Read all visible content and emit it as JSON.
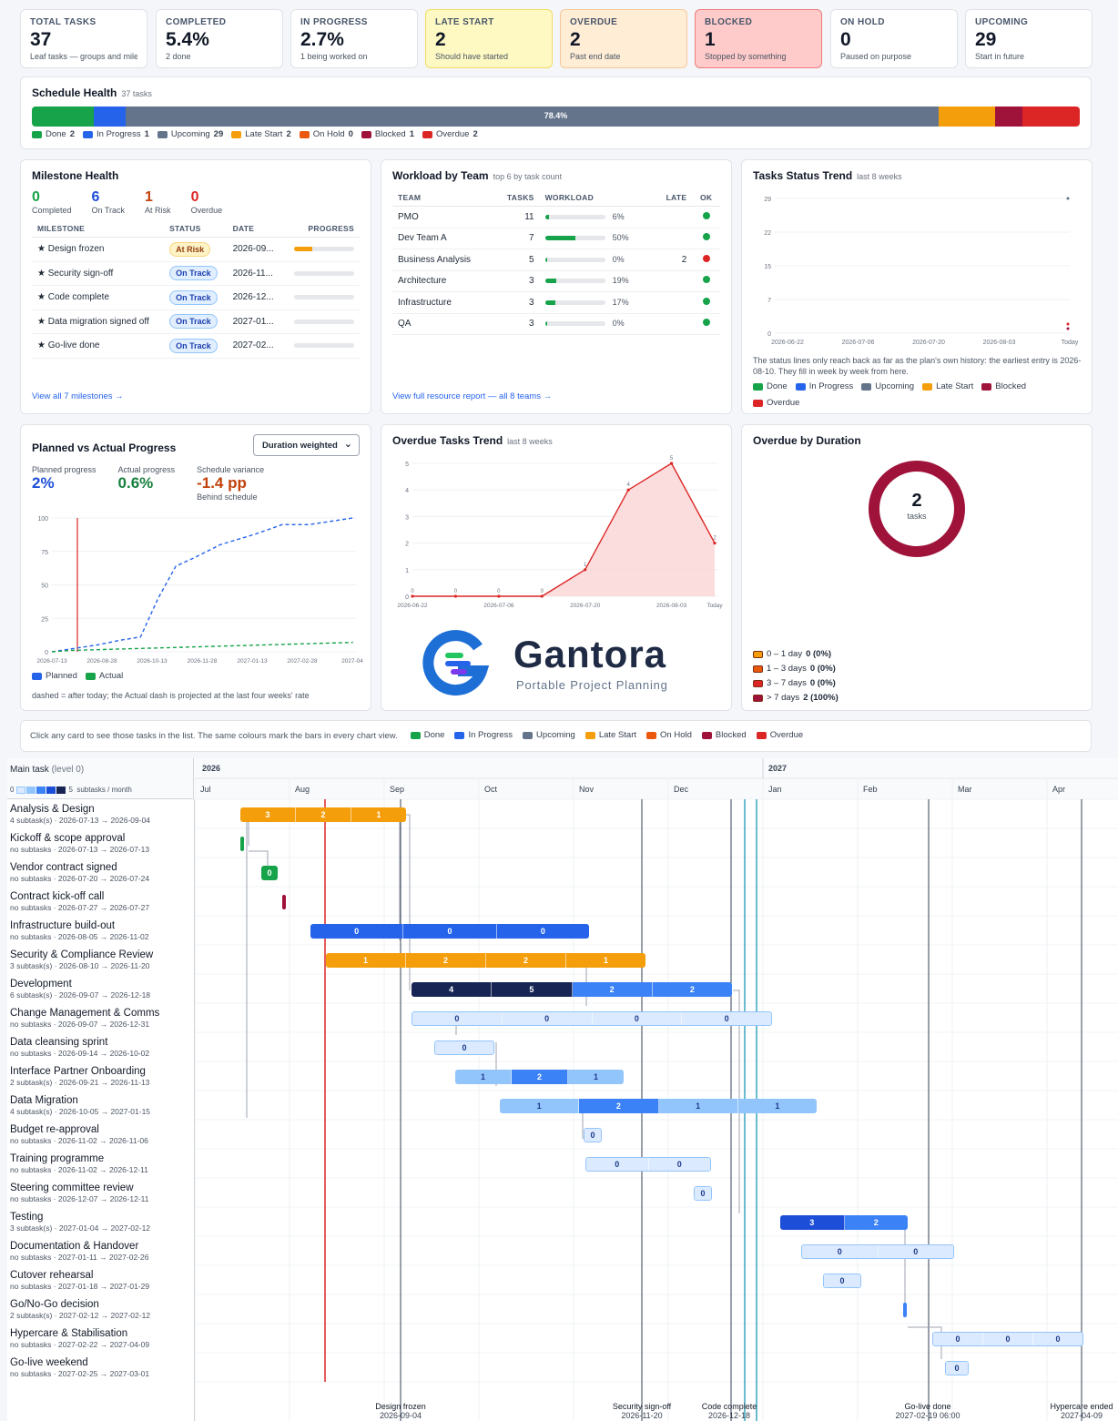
{
  "kpis": [
    {
      "title": "TOTAL TASKS",
      "value": "37",
      "sub": "Leaf tasks — groups and milestones"
    },
    {
      "title": "COMPLETED",
      "value": "5.4%",
      "sub": "2 done"
    },
    {
      "title": "IN PROGRESS",
      "value": "2.7%",
      "sub": "1 being worked on"
    },
    {
      "title": "LATE START",
      "value": "2",
      "sub": "Should have started"
    },
    {
      "title": "OVERDUE",
      "value": "2",
      "sub": "Past end date"
    },
    {
      "title": "BLOCKED",
      "value": "1",
      "sub": "Stopped by something"
    },
    {
      "title": "ON HOLD",
      "value": "0",
      "sub": "Paused on purpose"
    },
    {
      "title": "UPCOMING",
      "value": "29",
      "sub": "Start in future"
    }
  ],
  "schedule_health": {
    "title": "Schedule Health",
    "sub": "37 tasks",
    "bar_label": "78.4%",
    "segments": [
      {
        "name": "Done",
        "count": "2",
        "color": "#16a34a"
      },
      {
        "name": "In Progress",
        "count": "1",
        "color": "#2563eb"
      },
      {
        "name": "Upcoming",
        "count": "29",
        "color": "#64748b"
      },
      {
        "name": "Late Start",
        "count": "2",
        "color": "#f59e0b"
      },
      {
        "name": "On Hold",
        "count": "0",
        "color": "#ea580c"
      },
      {
        "name": "Blocked",
        "count": "1",
        "color": "#9f1239"
      },
      {
        "name": "Overdue",
        "count": "2",
        "color": "#dc2626"
      }
    ]
  },
  "milestone_health": {
    "title": "Milestone Health",
    "stats": [
      {
        "value": "0",
        "label": "Completed",
        "color": "#16a34a"
      },
      {
        "value": "6",
        "label": "On Track",
        "color": "#1d4ed8"
      },
      {
        "value": "1",
        "label": "At Risk",
        "color": "#c2410c"
      },
      {
        "value": "0",
        "label": "Overdue",
        "color": "#dc2626"
      }
    ],
    "headers": [
      "MILESTONE",
      "STATUS",
      "DATE",
      "PROGRESS"
    ],
    "rows": [
      {
        "name": "★ Design frozen",
        "status": "At Risk",
        "date": "2026-09...",
        "progress": 0.3
      },
      {
        "name": "★ Security sign-off",
        "status": "On Track",
        "date": "2026-11...",
        "progress": 0
      },
      {
        "name": "★ Code complete",
        "status": "On Track",
        "date": "2026-12...",
        "progress": 0
      },
      {
        "name": "★ Data migration signed off",
        "status": "On Track",
        "date": "2027-01...",
        "progress": 0
      },
      {
        "name": "★ Go-live done",
        "status": "On Track",
        "date": "2027-02...",
        "progress": 0
      }
    ],
    "link": "View all 7 milestones →"
  },
  "workload": {
    "title": "Workload by Team",
    "sub": "top 6 by task count",
    "headers": [
      "TEAM",
      "TASKS",
      "WORKLOAD",
      "LATE",
      "OK"
    ],
    "rows": [
      {
        "team": "PMO",
        "tasks": "11",
        "pct": "6%",
        "frac": 0.06,
        "late": "",
        "ok": "#16a34a"
      },
      {
        "team": "Dev Team A",
        "tasks": "7",
        "pct": "50%",
        "frac": 0.5,
        "late": "",
        "ok": "#16a34a"
      },
      {
        "team": "Business Analysis",
        "tasks": "5",
        "pct": "0%",
        "frac": 0,
        "late": "2",
        "ok": "#dc2626"
      },
      {
        "team": "Architecture",
        "tasks": "3",
        "pct": "19%",
        "frac": 0.19,
        "late": "",
        "ok": "#16a34a"
      },
      {
        "team": "Infrastructure",
        "tasks": "3",
        "pct": "17%",
        "frac": 0.17,
        "late": "",
        "ok": "#16a34a"
      },
      {
        "team": "QA",
        "tasks": "3",
        "pct": "0%",
        "frac": 0,
        "late": "",
        "ok": "#16a34a"
      }
    ],
    "link": "View full resource report — all 8 teams →"
  },
  "status_trend": {
    "title": "Tasks Status Trend",
    "sub": "last 8 weeks",
    "yticks": [
      "29",
      "22",
      "15",
      "7",
      "0"
    ],
    "xticks": [
      "2026-06-22",
      "2026-07-06",
      "2026-07-20",
      "2026-08-03",
      "Today"
    ],
    "note": "The status lines only reach back as far as the plan's own history: the earliest entry is 2026-08-10. They fill in week by week from here.",
    "legend": [
      {
        "name": "Done",
        "color": "#16a34a"
      },
      {
        "name": "In Progress",
        "color": "#2563eb"
      },
      {
        "name": "Upcoming",
        "color": "#64748b"
      },
      {
        "name": "Late Start",
        "color": "#f59e0b"
      },
      {
        "name": "Blocked",
        "color": "#9f1239"
      },
      {
        "name": "Overdue",
        "color": "#dc2626"
      }
    ]
  },
  "planned_actual": {
    "title": "Planned vs Actual Progress",
    "select": "Duration weighted",
    "stats": [
      {
        "label": "Planned progress",
        "value": "2%",
        "color": "#1d4ed8",
        "sub": ""
      },
      {
        "label": "Actual progress",
        "value": "0.6%",
        "color": "#15803d",
        "sub": ""
      },
      {
        "label": "Schedule variance",
        "value": "-1.4 pp",
        "color": "#c2410c",
        "sub": "Behind schedule"
      }
    ],
    "legend": [
      {
        "name": "Planned",
        "color": "#2563eb"
      },
      {
        "name": "Actual",
        "color": "#16a34a"
      }
    ],
    "note": "dashed = after today; the Actual dash is projected at the last four weeks' rate"
  },
  "chart_data": [
    {
      "type": "line",
      "title": "Planned vs Actual Progress",
      "x": [
        "2026-07-13",
        "2026-08-28",
        "2026-10-13",
        "2026-11-28",
        "2027-01-13",
        "2027-02-28",
        "2027-04"
      ],
      "ylim": [
        0,
        100
      ],
      "yticks": [
        0,
        25,
        50,
        75,
        100
      ],
      "series": [
        {
          "name": "Planned",
          "values": [
            [
              0,
              0
            ],
            [
              0.04,
              2
            ],
            [
              0.1,
              5
            ],
            [
              0.16,
              9
            ],
            [
              0.2,
              11
            ],
            [
              0.24,
              40
            ],
            [
              0.28,
              64
            ],
            [
              0.32,
              70
            ],
            [
              0.38,
              80
            ],
            [
              0.46,
              88
            ],
            [
              0.52,
              95
            ],
            [
              0.58,
              95
            ],
            [
              0.64,
              98
            ],
            [
              0.68,
              100
            ]
          ]
        },
        {
          "name": "Actual",
          "values": [
            [
              0,
              0
            ],
            [
              0.04,
              1
            ],
            [
              0.68,
              7
            ]
          ]
        }
      ]
    },
    {
      "type": "area",
      "title": "Overdue Tasks Trend",
      "categories": [
        "2026-06-22",
        "",
        "2026-07-06",
        "",
        "2026-07-20",
        "",
        "2026-08-03",
        "Today"
      ],
      "values": [
        0,
        0,
        0,
        0,
        1,
        4,
        5,
        2
      ],
      "ylim": [
        0,
        5
      ],
      "yticks": [
        0,
        1,
        2,
        3,
        4,
        5
      ]
    },
    {
      "type": "pie",
      "title": "Overdue by Duration",
      "center_value": "2",
      "center_label": "tasks",
      "slices": [
        {
          "name": "0 – 1 day",
          "value": 0,
          "label": "0 (0%)",
          "color": "#f59e0b"
        },
        {
          "name": "1 – 3 days",
          "value": 0,
          "label": "0 (0%)",
          "color": "#ea580c"
        },
        {
          "name": "3 – 7 days",
          "value": 0,
          "label": "0 (0%)",
          "color": "#dc2626"
        },
        {
          "name": "> 7 days",
          "value": 2,
          "label": "2 (100%)",
          "color": "#9f1239"
        }
      ]
    }
  ],
  "overdue_trend": {
    "title": "Overdue Tasks Trend",
    "sub": "last 8 weeks"
  },
  "overdue_duration": {
    "title": "Overdue by Duration"
  },
  "brand": {
    "name": "Gantora",
    "tagline": "Portable Project Planning"
  },
  "hint": {
    "text": "Click any card to see those tasks in the list. The same colours mark the bars in every chart view.",
    "legend": [
      {
        "name": "Done",
        "color": "#16a34a"
      },
      {
        "name": "In Progress",
        "color": "#2563eb"
      },
      {
        "name": "Upcoming",
        "color": "#64748b"
      },
      {
        "name": "Late Start",
        "color": "#f59e0b"
      },
      {
        "name": "On Hold",
        "color": "#ea580c"
      },
      {
        "name": "Blocked",
        "color": "#9f1239"
      },
      {
        "name": "Overdue",
        "color": "#dc2626"
      }
    ]
  },
  "gantt": {
    "header": "Main task",
    "header_sub": "(level 0)",
    "scale_min": "0",
    "scale_max": "5",
    "scale_label": "subtasks / month",
    "years": [
      "2026",
      "2027"
    ],
    "months": [
      "Jul",
      "Aug",
      "Sep",
      "Oct",
      "Nov",
      "Dec",
      "Jan",
      "Feb",
      "Mar",
      "Apr"
    ],
    "tasks": [
      {
        "name": "Analysis & Design",
        "dates": "4 subtask(s) · 2026-07-13 → 2026-09-04"
      },
      {
        "name": "Kickoff & scope approval",
        "dates": "no subtasks · 2026-07-13 → 2026-07-13"
      },
      {
        "name": "Vendor contract signed",
        "dates": "no subtasks · 2026-07-20 → 2026-07-24"
      },
      {
        "name": "Contract kick-off call",
        "dates": "no subtasks · 2026-07-27 → 2026-07-27"
      },
      {
        "name": "Infrastructure build-out",
        "dates": "no subtasks · 2026-08-05 → 2026-11-02"
      },
      {
        "name": "Security & Compliance Review",
        "dates": "3 subtask(s) · 2026-08-10 → 2026-11-20"
      },
      {
        "name": "Development",
        "dates": "6 subtask(s) · 2026-09-07 → 2026-12-18"
      },
      {
        "name": "Change Management & Comms",
        "dates": "no subtasks · 2026-09-07 → 2026-12-31"
      },
      {
        "name": "Data cleansing sprint",
        "dates": "no subtasks · 2026-09-14 → 2026-10-02"
      },
      {
        "name": "Interface Partner Onboarding",
        "dates": "2 subtask(s) · 2026-09-21 → 2026-11-13"
      },
      {
        "name": "Data Migration",
        "dates": "4 subtask(s) · 2026-10-05 → 2027-01-15"
      },
      {
        "name": "Budget re-approval",
        "dates": "no subtasks · 2026-11-02 → 2026-11-06"
      },
      {
        "name": "Training programme",
        "dates": "no subtasks · 2026-11-02 → 2026-12-11"
      },
      {
        "name": "Steering committee review",
        "dates": "no subtasks · 2026-12-07 → 2026-12-11"
      },
      {
        "name": "Testing",
        "dates": "3 subtask(s) · 2027-01-04 → 2027-02-12"
      },
      {
        "name": "Documentation & Handover",
        "dates": "no subtasks · 2027-01-11 → 2027-02-26"
      },
      {
        "name": "Cutover rehearsal",
        "dates": "no subtasks · 2027-01-18 → 2027-01-29"
      },
      {
        "name": "Go/No-Go decision",
        "dates": "2 subtask(s) · 2027-02-12 → 2027-02-12"
      },
      {
        "name": "Hypercare & Stabilisation",
        "dates": "no subtasks · 2027-02-22 → 2027-04-09"
      },
      {
        "name": "Go-live weekend",
        "dates": "no subtasks · 2027-02-25 → 2027-03-01"
      }
    ],
    "bars": [
      {
        "segs": [
          {
            "t": "3",
            "c": "#f59e0b"
          },
          {
            "t": "2",
            "c": "#f59e0b"
          },
          {
            "t": "1",
            "c": "#f59e0b"
          }
        ]
      },
      {
        "segs": [
          {
            "t": "",
            "c": "#16a34a"
          }
        ]
      },
      {
        "segs": [
          {
            "t": "0",
            "c": "#16a34a"
          }
        ]
      },
      {
        "segs": [
          {
            "t": "",
            "c": "#9f1239"
          }
        ]
      },
      {
        "segs": [
          {
            "t": "0",
            "c": "#2563eb"
          },
          {
            "t": "0",
            "c": "#2563eb"
          },
          {
            "t": "0",
            "c": "#2563eb"
          }
        ]
      },
      {
        "segs": [
          {
            "t": "1",
            "c": "#f59e0b"
          },
          {
            "t": "2",
            "c": "#f59e0b"
          },
          {
            "t": "2",
            "c": "#f59e0b"
          },
          {
            "t": "1",
            "c": "#f59e0b"
          }
        ]
      },
      {
        "segs": [
          {
            "t": "4",
            "c": "#172554"
          },
          {
            "t": "5",
            "c": "#172554"
          },
          {
            "t": "2",
            "c": "#3b82f6"
          },
          {
            "t": "2",
            "c": "#3b82f6"
          }
        ]
      },
      {
        "segs": [
          {
            "t": "0",
            "c": "#dbeafe"
          },
          {
            "t": "0",
            "c": "#dbeafe"
          },
          {
            "t": "0",
            "c": "#dbeafe"
          },
          {
            "t": "0",
            "c": "#dbeafe"
          }
        ]
      },
      {
        "segs": [
          {
            "t": "0",
            "c": "#dbeafe"
          }
        ]
      },
      {
        "segs": [
          {
            "t": "1",
            "c": "#93c5fd"
          },
          {
            "t": "2",
            "c": "#3b82f6"
          },
          {
            "t": "1",
            "c": "#93c5fd"
          }
        ]
      },
      {
        "segs": [
          {
            "t": "1",
            "c": "#93c5fd"
          },
          {
            "t": "2",
            "c": "#3b82f6"
          },
          {
            "t": "1",
            "c": "#93c5fd"
          },
          {
            "t": "1",
            "c": "#93c5fd"
          }
        ]
      },
      {
        "segs": [
          {
            "t": "0",
            "c": "#dbeafe"
          }
        ]
      },
      {
        "segs": [
          {
            "t": "0",
            "c": "#dbeafe"
          },
          {
            "t": "0",
            "c": "#dbeafe"
          }
        ]
      },
      {
        "segs": [
          {
            "t": "0",
            "c": "#dbeafe"
          }
        ]
      },
      {
        "segs": [
          {
            "t": "3",
            "c": "#1d4ed8"
          },
          {
            "t": "2",
            "c": "#3b82f6"
          }
        ]
      },
      {
        "segs": [
          {
            "t": "0",
            "c": "#dbeafe"
          },
          {
            "t": "0",
            "c": "#dbeafe"
          }
        ]
      },
      {
        "segs": [
          {
            "t": "0",
            "c": "#dbeafe"
          }
        ]
      },
      {
        "segs": [
          {
            "t": "",
            "c": "#3b82f6"
          }
        ]
      },
      {
        "segs": [
          {
            "t": "0",
            "c": "#dbeafe"
          },
          {
            "t": "0",
            "c": "#dbeafe"
          },
          {
            "t": "0",
            "c": "#dbeafe"
          }
        ]
      },
      {
        "segs": [
          {
            "t": "0",
            "c": "#dbeafe"
          }
        ]
      }
    ],
    "milestones": [
      {
        "name": "Design frozen",
        "date": "2026-09-04"
      },
      {
        "name": "Security sign-off",
        "date": "2026-11-20"
      },
      {
        "name": "Code complete",
        "date": "2026-12-18"
      },
      {
        "name": "Go-live done",
        "date": "2027-02-19 06:00"
      },
      {
        "name": "Hypercare ended",
        "date": "2027-04-09"
      }
    ]
  }
}
